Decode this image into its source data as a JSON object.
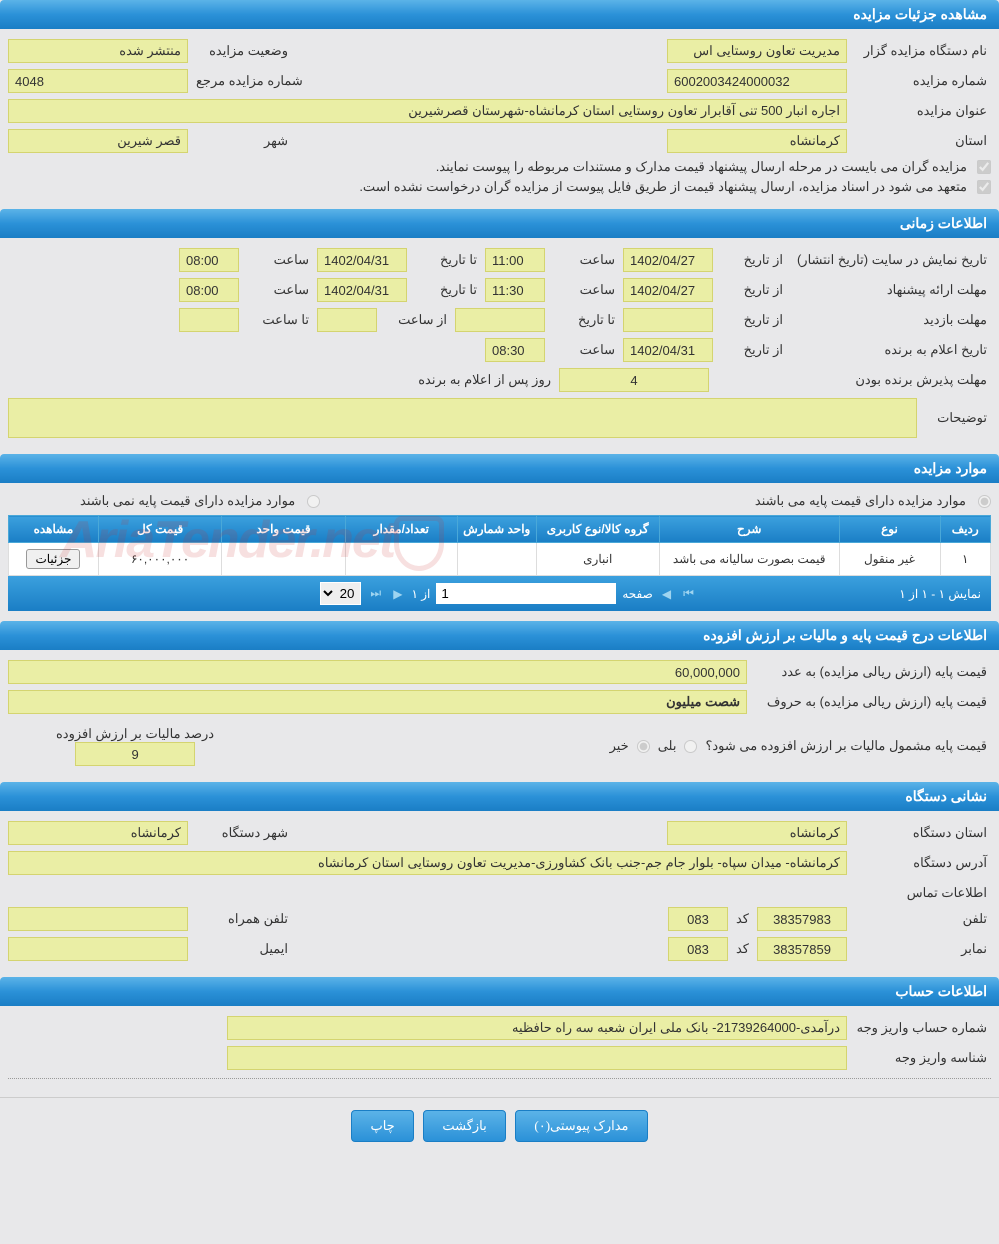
{
  "sections": {
    "details": "مشاهده جزئیات مزایده",
    "time": "اطلاعات زمانی",
    "items": "موارد مزایده",
    "price": "اطلاعات درج قیمت پایه و مالیات بر ارزش افزوده",
    "address": "نشانی دستگاه",
    "account": "اطلاعات حساب"
  },
  "details": {
    "org_label": "نام دستگاه مزایده گزار",
    "org_value": "مدیریت تعاون روستایی اس",
    "status_label": "وضعیت مزایده",
    "status_value": "منتشر شده",
    "number_label": "شماره مزایده",
    "number_value": "6002003424000032",
    "ref_label": "شماره مزایده مرجع",
    "ref_value": "4048",
    "title_label": "عنوان مزایده",
    "title_value": "اجاره انبار 500 تنی آقابرار تعاون روستایی استان کرمانشاه-شهرستان قصرشیرین",
    "province_label": "استان",
    "province_value": "کرمانشاه",
    "city_label": "شهر",
    "city_value": "قصر شیرین",
    "check1": "مزایده گران می بایست در مرحله ارسال پیشنهاد قیمت مدارک و مستندات مربوطه را پیوست نمایند.",
    "check2": "متعهد می شود در اسناد مزایده، ارسال پیشنهاد قیمت از طریق فایل پیوست از مزایده گران درخواست نشده است."
  },
  "time": {
    "publish_label": "تاریخ نمایش در سایت (تاریخ انتشار)",
    "from_date_label": "از تاریخ",
    "to_date_label": "تا تاریخ",
    "hour_label": "ساعت",
    "to_hour_label": "تا ساعت",
    "from_hour_label": "از ساعت",
    "publish_from_date": "1402/04/27",
    "publish_from_hour": "11:00",
    "publish_to_date": "1402/04/31",
    "publish_to_hour": "08:00",
    "offer_label": "مهلت ارائه پیشنهاد",
    "offer_from_date": "1402/04/27",
    "offer_from_hour": "11:30",
    "offer_to_date": "1402/04/31",
    "offer_to_hour": "08:00",
    "visit_label": "مهلت بازدید",
    "winner_label": "تاریخ اعلام به برنده",
    "winner_date": "1402/04/31",
    "winner_hour": "08:30",
    "accept_label": "مهلت پذیرش برنده بودن",
    "accept_value": "4",
    "accept_suffix": "روز پس از اعلام به برنده",
    "desc_label": "توضیحات"
  },
  "items": {
    "radio1": "موارد مزایده دارای قیمت پایه می باشند",
    "radio2": "موارد مزایده دارای قیمت پایه نمی باشند",
    "headers": {
      "row": "ردیف",
      "type": "نوع",
      "desc": "شرح",
      "group": "گروه کالا/نوع کاربری",
      "unit": "واحد شمارش",
      "qty": "تعداد/مقدار",
      "unit_price": "قیمت واحد",
      "total_price": "قیمت کل",
      "view": "مشاهده"
    },
    "rows": [
      {
        "row": "۱",
        "type": "غیر منقول",
        "desc": "قیمت بصورت سالیانه می باشد",
        "group": "انباری",
        "unit": "",
        "qty": "",
        "unit_price": "",
        "total_price": "۶۰,۰۰۰,۰۰۰",
        "view": "جزئیات"
      }
    ],
    "pager": {
      "display": "نمایش ۱ - ۱ از ۱",
      "page_label": "صفحه",
      "page_value": "1",
      "of_label": "از ۱",
      "size": "20"
    }
  },
  "price": {
    "base_num_label": "قیمت پایه (ارزش ریالی مزایده) به عدد",
    "base_num_value": "60,000,000",
    "base_text_label": "قیمت پایه (ارزش ریالی مزایده) به حروف",
    "base_text_value": "شصت میلیون",
    "vat_q": "قیمت پایه مشمول مالیات بر ارزش افزوده می شود؟",
    "yes": "بلی",
    "no": "خیر",
    "vat_pct_label": "درصد مالیات بر ارزش افزوده",
    "vat_pct_value": "9"
  },
  "address": {
    "province_label": "استان دستگاه",
    "province_value": "کرمانشاه",
    "city_label": "شهر دستگاه",
    "city_value": "کرمانشاه",
    "addr_label": "آدرس دستگاه",
    "addr_value": "کرمانشاه- میدان سپاه- بلوار جام جم-جنب بانک کشاورزی-مدیریت تعاون روستایی استان کرمانشاه",
    "contact_label": "اطلاعات تماس",
    "phone_label": "تلفن",
    "phone_value": "38357983",
    "code_label": "کد",
    "code_value": "083",
    "mobile_label": "تلفن همراه",
    "fax_label": "نمابر",
    "fax_value": "38357859",
    "fax_code": "083",
    "email_label": "ایمیل"
  },
  "account": {
    "acc_label": "شماره حساب واریز وجه",
    "acc_value": "درآمدی-21739264000- بانک ملی ایران شعبه سه راه حافظیه",
    "id_label": "شناسه واریز وجه"
  },
  "actions": {
    "attachments": "مدارک پیوستی(۰)",
    "back": "بازگشت",
    "print": "چاپ"
  },
  "watermark": "AriaTender.net"
}
